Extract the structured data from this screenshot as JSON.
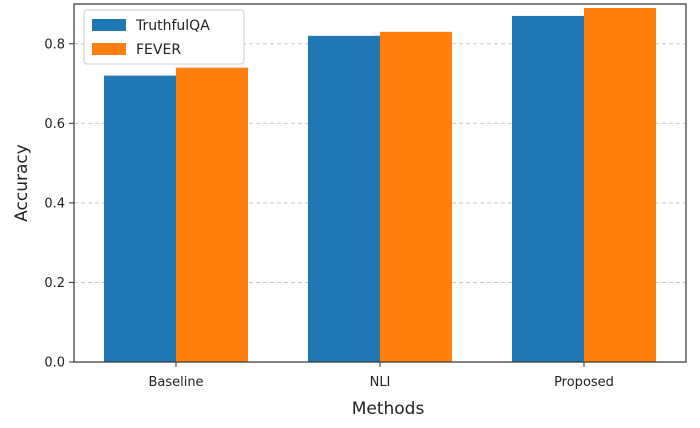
{
  "chart_data": {
    "type": "bar",
    "title": "",
    "xlabel": "Methods",
    "ylabel": "Accuracy",
    "categories": [
      "Baseline",
      "NLI",
      "Proposed"
    ],
    "series": [
      {
        "name": "TruthfulQA",
        "values": [
          0.72,
          0.82,
          0.87
        ],
        "color": "#1f77b4"
      },
      {
        "name": "FEVER",
        "values": [
          0.74,
          0.83,
          0.89
        ],
        "color": "#ff7f0e"
      }
    ],
    "ylim": [
      0,
      0.9
    ],
    "yticks": [
      "0.0",
      "0.2",
      "0.4",
      "0.6",
      "0.8"
    ],
    "grid": "horizontal dashed",
    "legend": "top-left"
  }
}
